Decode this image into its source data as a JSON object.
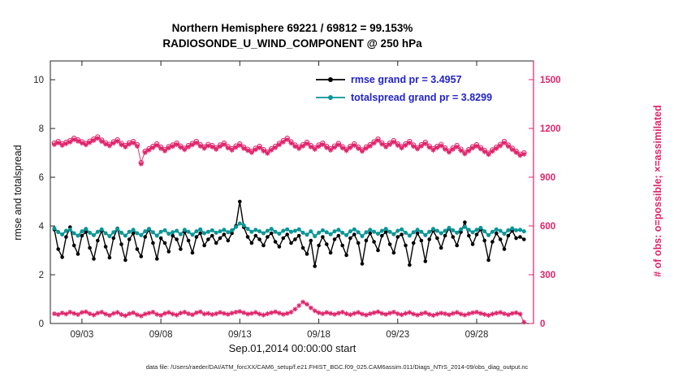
{
  "window": {
    "caption": "data file: /Users/raeder/DAI/ATM_forcXX/CAM6_setup/f.e21.FHIST_BGC.f09_025.CAM6assim.011/Diags_NTrS_2014-09/obs_diag_output.nc"
  },
  "chart_data": {
    "type": "line",
    "title": "Northern Hemisphere 69221 / 69812 = 99.153%",
    "subtitle": "RADIOSONDE_U_WIND_COMPONENT @ 250 hPa",
    "xlabel": "Sep.01,2014 00:00:00 start",
    "ylabel_left": "rmse and totalspread",
    "ylabel_right": "# of obs: o=possible; ×=assimilated",
    "x_tick_labels": [
      "09/03",
      "09/08",
      "09/13",
      "09/18",
      "09/23",
      "09/28"
    ],
    "x_tick_days": [
      2,
      7,
      12,
      17,
      22,
      27
    ],
    "y_ticks_left": [
      0,
      2,
      4,
      6,
      8,
      10
    ],
    "y_ticks_right": [
      0,
      300,
      600,
      900,
      1200,
      1500
    ],
    "ylim_left": [
      0,
      10.77
    ],
    "ylim_right": [
      0,
      1615
    ],
    "x_domain_days": [
      0,
      30.6
    ],
    "time_start_day": 0.25,
    "time_step_days": 0.25,
    "assimilated_fraction": 0.99153,
    "legend": [
      {
        "label": "rmse grand pr = 3.4957",
        "color": "#000000"
      },
      {
        "label": "totalspread grand pr = 3.8299",
        "color": "#0a9696"
      }
    ],
    "colors": {
      "rmse": "#000000",
      "totalspread": "#0a9696",
      "obs": "#e0236b",
      "legend_text": "#2222cc",
      "axis": "#262626"
    },
    "series": [
      {
        "name": "rmse",
        "axis": "left",
        "values": [
          3.85,
          3.05,
          2.72,
          3.55,
          3.95,
          3.2,
          2.85,
          3.6,
          3.75,
          3.1,
          2.65,
          3.4,
          3.8,
          3.15,
          2.7,
          3.5,
          3.9,
          3.25,
          2.6,
          3.45,
          3.7,
          3.05,
          2.75,
          3.55,
          3.85,
          3.3,
          2.65,
          3.5,
          3.3,
          2.95,
          3.6,
          3.45,
          3.05,
          3.75,
          3.4,
          2.9,
          3.55,
          3.7,
          3.2,
          3.45,
          3.6,
          3.3,
          3.5,
          3.65,
          3.4,
          3.7,
          4.0,
          5.0,
          3.95,
          3.55,
          3.3,
          3.6,
          3.45,
          3.2,
          3.55,
          3.7,
          3.35,
          3.15,
          3.5,
          3.65,
          3.3,
          3.45,
          3.6,
          3.1,
          2.85,
          3.4,
          2.35,
          3.2,
          3.55,
          3.25,
          2.9,
          3.45,
          3.6,
          3.2,
          2.8,
          3.5,
          3.65,
          3.3,
          2.45,
          3.4,
          3.7,
          3.35,
          3.0,
          3.6,
          3.75,
          3.25,
          2.9,
          3.55,
          3.65,
          3.2,
          2.4,
          3.3,
          3.7,
          3.4,
          2.55,
          3.45,
          3.8,
          3.5,
          3.1,
          3.6,
          3.9,
          3.55,
          3.2,
          3.75,
          4.15,
          3.6,
          3.25,
          3.65,
          3.85,
          3.4,
          2.6,
          3.35,
          3.7,
          3.45,
          3.05,
          3.6,
          3.8,
          3.5,
          3.55,
          3.45
        ]
      },
      {
        "name": "totalspread",
        "axis": "left",
        "values": [
          3.9,
          3.75,
          3.65,
          3.8,
          3.85,
          3.7,
          3.6,
          3.78,
          3.88,
          3.72,
          3.62,
          3.76,
          3.86,
          3.7,
          3.58,
          3.74,
          3.88,
          3.72,
          3.6,
          3.76,
          3.84,
          3.7,
          3.62,
          3.78,
          3.88,
          3.74,
          3.6,
          3.76,
          3.82,
          3.68,
          3.74,
          3.8,
          3.66,
          3.84,
          3.76,
          3.64,
          3.78,
          3.86,
          3.7,
          3.76,
          3.82,
          3.72,
          3.78,
          3.84,
          3.74,
          3.82,
          3.96,
          4.1,
          4.02,
          3.88,
          3.76,
          3.84,
          3.78,
          3.7,
          3.8,
          3.88,
          3.76,
          3.68,
          3.8,
          3.86,
          3.76,
          3.8,
          3.86,
          3.72,
          3.64,
          3.78,
          3.58,
          3.72,
          3.82,
          3.74,
          3.66,
          3.78,
          3.84,
          3.72,
          3.62,
          3.78,
          3.86,
          3.74,
          3.58,
          3.74,
          3.84,
          3.76,
          3.68,
          3.8,
          3.88,
          3.76,
          3.66,
          3.8,
          3.86,
          3.72,
          3.6,
          3.74,
          3.84,
          3.76,
          3.62,
          3.76,
          3.88,
          3.8,
          3.7,
          3.8,
          3.92,
          3.82,
          3.72,
          3.86,
          3.96,
          3.84,
          3.74,
          3.84,
          3.92,
          3.78,
          3.62,
          3.76,
          3.86,
          3.8,
          3.68,
          3.82,
          3.9,
          3.82,
          3.84,
          3.78
        ]
      },
      {
        "name": "obs_possible",
        "axis": "right",
        "values": [
          1110,
          1120,
          1105,
          1115,
          1125,
          1140,
          1130,
          1118,
          1108,
          1122,
          1135,
          1148,
          1128,
          1112,
          1102,
          1118,
          1130,
          1108,
          1095,
          1112,
          1120,
          1100,
          990,
          1060,
          1075,
          1090,
          1105,
          1085,
          1070,
          1088,
          1098,
          1110,
          1092,
          1078,
          1095,
          1108,
          1120,
          1100,
          1086,
          1102,
          1095,
          1080,
          1098,
          1110,
          1088,
          1075,
          1092,
          1105,
          1085,
          1072,
          1060,
          1078,
          1090,
          1070,
          1055,
          1075,
          1090,
          1108,
          1125,
          1140,
          1118,
          1098,
          1085,
          1100,
          1115,
          1095,
          1080,
          1098,
          1110,
          1090,
          1075,
          1092,
          1108,
          1088,
          1072,
          1090,
          1105,
          1085,
          1068,
          1086,
          1100,
          1118,
          1135,
          1112,
          1095,
          1110,
          1125,
          1105,
          1088,
          1105,
          1120,
          1098,
          1082,
          1100,
          1115,
          1092,
          1075,
          1090,
          1102,
          1080,
          1062,
          1080,
          1095,
          1072,
          1052,
          1070,
          1088,
          1100,
          1082,
          1065,
          1048,
          1068,
          1085,
          1102,
          1120,
          1098,
          1078,
          1060,
          1042,
          1050
        ]
      },
      {
        "name": "obs_low_band",
        "axis": "right",
        "values": [
          60,
          55,
          65,
          58,
          70,
          62,
          55,
          68,
          72,
          60,
          52,
          64,
          70,
          58,
          50,
          62,
          68,
          55,
          48,
          60,
          66,
          54,
          46,
          58,
          64,
          70,
          56,
          50,
          62,
          68,
          58,
          52,
          64,
          70,
          60,
          54,
          66,
          72,
          58,
          62,
          55,
          60,
          68,
          62,
          56,
          64,
          70,
          74,
          66,
          58,
          62,
          68,
          58,
          52,
          60,
          66,
          72,
          64,
          56,
          62,
          70,
          88,
          110,
          132,
          118,
          96,
          78,
          66,
          60,
          68,
          62,
          56,
          64,
          70,
          60,
          54,
          62,
          68,
          58,
          52,
          60,
          66,
          72,
          62,
          56,
          64,
          70,
          60,
          54,
          62,
          68,
          58,
          52,
          60,
          66,
          56,
          50,
          58,
          64,
          60,
          54,
          62,
          68,
          58,
          52,
          60,
          66,
          70,
          62,
          56,
          50,
          58,
          64,
          68,
          60,
          54,
          62,
          66,
          58,
          8
        ]
      }
    ]
  }
}
